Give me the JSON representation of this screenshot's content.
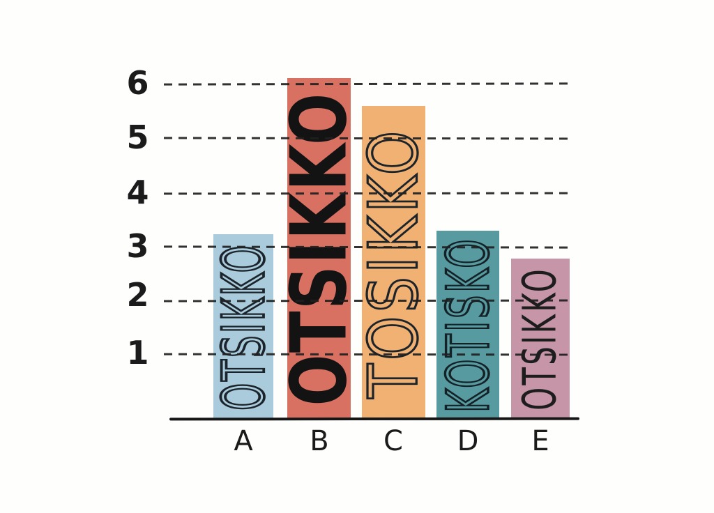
{
  "chart_data": {
    "type": "bar",
    "title": "",
    "xlabel": "",
    "ylabel": "",
    "categories": [
      "A",
      "B",
      "C",
      "D",
      "E"
    ],
    "values": [
      3.2,
      6.1,
      5.6,
      3.3,
      2.75
    ],
    "bar_texts": [
      "OTSIKKO",
      "OTSIKKO",
      "TOSIKKO",
      "KOTISKO",
      "OTSIKKO"
    ],
    "bar_text_styles": [
      "outline",
      "solid-bold",
      "outline",
      "outline",
      "thin"
    ],
    "bar_colors": [
      "#a9cbdb",
      "#d97163",
      "#f0b173",
      "#579aa0",
      "#c795a8"
    ],
    "ink_color": "#1c242b",
    "ylim": [
      0,
      6.5
    ],
    "ytick_labels": [
      "1",
      "2",
      "3",
      "4",
      "5",
      "6"
    ],
    "grid": "horizontal-dashed",
    "legend": "none",
    "style": "hand-drawn"
  }
}
